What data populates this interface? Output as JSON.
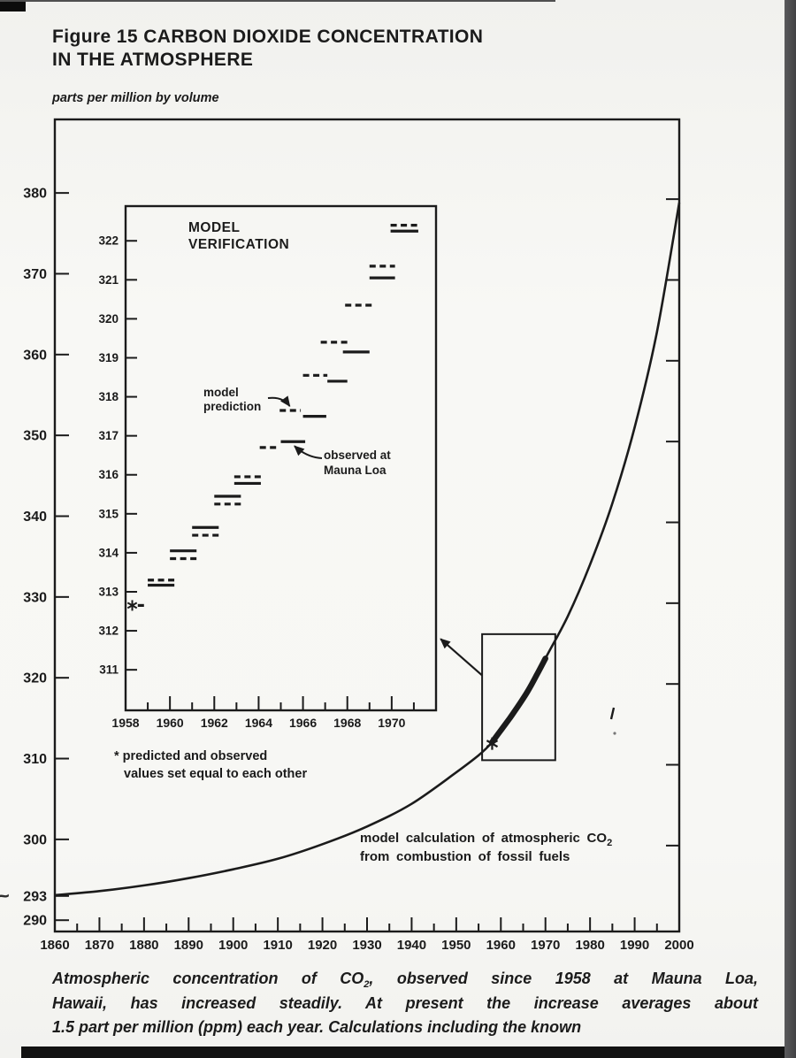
{
  "page": {
    "title_line1": "Figure 15 CARBON DIOXIDE CONCENTRATION",
    "title_line2": "IN THE ATMOSPHERE",
    "unit_label": "parts per million by volume",
    "stray_mark": "~",
    "caption": {
      "line1_pre": "Atmospheric concentration of CO",
      "line1_sub": "2",
      "line1_post": ", observed since 1958 at Mauna Loa,",
      "line2": "Hawaii, has increased steadily. At present the increase averages about",
      "line3": "1.5 part per million (ppm) each year. Calculations including the known"
    }
  },
  "chart_data": [
    {
      "id": "main",
      "type": "line",
      "title": "",
      "xlabel": "year",
      "ylabel": "parts per million by volume",
      "xlim": [
        1860,
        2000
      ],
      "ylim": [
        288.6,
        389.1
      ],
      "grid": false,
      "x_major_ticks": [
        1860,
        1870,
        1880,
        1890,
        1900,
        1910,
        1920,
        1930,
        1940,
        1950,
        1960,
        1970,
        1980,
        1990,
        2000
      ],
      "x_minor_ticks": [
        1865,
        1875,
        1885,
        1895,
        1905,
        1915,
        1925,
        1935,
        1945,
        1955,
        1965,
        1975,
        1985,
        1995
      ],
      "y_ticks": [
        380,
        370,
        360,
        350,
        340,
        330,
        320,
        310,
        300,
        293,
        290
      ],
      "y_ticks_right": [
        380,
        370,
        360,
        350,
        340,
        330,
        320,
        310,
        300
      ],
      "series": [
        {
          "name": "model calculation of atmospheric CO2 from combustion of fossil fuels",
          "style": "line",
          "x": [
            1860,
            1870,
            1880,
            1890,
            1900,
            1910,
            1920,
            1930,
            1940,
            1950,
            1955,
            1958,
            1962,
            1966,
            1970,
            1975,
            1980,
            1985,
            1990,
            1995,
            2000
          ],
          "y": [
            293.1,
            293.6,
            294.3,
            295.2,
            296.3,
            297.6,
            299.4,
            301.6,
            304.4,
            308.3,
            310.4,
            312.0,
            314.8,
            318.0,
            322.4,
            327.6,
            334.0,
            341.6,
            351.0,
            362.8,
            378.8
          ]
        },
        {
          "name": "observed at Mauna Loa (thick overlay 1958-1970)",
          "style": "thick",
          "x": [
            1958,
            1960,
            1962,
            1964,
            1966,
            1968,
            1970
          ],
          "y": [
            312.0,
            313.5,
            315.0,
            316.6,
            318.3,
            320.3,
            322.4
          ]
        }
      ],
      "annotations": {
        "label_line1_pre": "model calculation of atmospheric CO",
        "label_line1_sub": "2",
        "label_line2": "from combustion of fossil fuels",
        "star": {
          "x": 1958.05,
          "v": 311.85
        },
        "zoom_rect": {
          "x1": 1955.8,
          "x2": 1972.2,
          "v1": 309.8,
          "v2": 325.4
        },
        "inset_pointer_arrow": {
          "x1": 1955.8,
          "v1": 320.3,
          "x2": 1946.5,
          "v2": 324.8
        }
      }
    },
    {
      "id": "inset",
      "type": "line",
      "title": "MODEL VERIFICATION",
      "xlim": [
        1958,
        1972.0
      ],
      "ylim": [
        309.96,
        322.89
      ],
      "grid": false,
      "x_major_ticks": [
        1958,
        1960,
        1962,
        1964,
        1966,
        1968,
        1970
      ],
      "x_minor_ticks": [
        1959,
        1961,
        1963,
        1965,
        1967,
        1969,
        1971
      ],
      "y_ticks": [
        311,
        312,
        313,
        314,
        315,
        316,
        317,
        318,
        319,
        320,
        321,
        322
      ],
      "legend": {
        "model_prediction": "model prediction",
        "observed_line1": "observed at",
        "observed_line2": "Mauna Loa",
        "star_note_line1": "* predicted and observed",
        "star_note_line2": "values set equal to each other"
      },
      "segments": [
        {
          "style": "solid",
          "x1": 1969.95,
          "x2": 1971.2,
          "v": 322.25
        },
        {
          "style": "dashed",
          "x1": 1969.95,
          "x2": 1971.2,
          "v": 322.4
        },
        {
          "style": "dashed",
          "x1": 1969.0,
          "x2": 1970.15,
          "v": 321.35
        },
        {
          "style": "solid",
          "x1": 1969.0,
          "x2": 1970.15,
          "v": 321.05
        },
        {
          "style": "dashed",
          "x1": 1967.9,
          "x2": 1969.1,
          "v": 320.35
        },
        {
          "style": "dashed",
          "x1": 1966.8,
          "x2": 1968.0,
          "v": 319.4
        },
        {
          "style": "solid",
          "x1": 1967.8,
          "x2": 1969.0,
          "v": 319.15
        },
        {
          "style": "dashed",
          "x1": 1966.0,
          "x2": 1967.1,
          "v": 318.55
        },
        {
          "style": "solid",
          "x1": 1967.1,
          "x2": 1968.0,
          "v": 318.4
        },
        {
          "style": "dashed",
          "x1": 1964.95,
          "x2": 1965.9,
          "v": 317.65
        },
        {
          "style": "solid",
          "x1": 1966.0,
          "x2": 1967.05,
          "v": 317.5
        },
        {
          "style": "solid",
          "x1": 1965.0,
          "x2": 1966.1,
          "v": 316.85
        },
        {
          "style": "dashed",
          "x1": 1964.05,
          "x2": 1964.95,
          "v": 316.7
        },
        {
          "style": "dashed",
          "x1": 1962.9,
          "x2": 1964.1,
          "v": 315.95
        },
        {
          "style": "solid",
          "x1": 1962.9,
          "x2": 1964.1,
          "v": 315.78
        },
        {
          "style": "solid",
          "x1": 1962.0,
          "x2": 1963.2,
          "v": 315.45
        },
        {
          "style": "dashed",
          "x1": 1962.0,
          "x2": 1963.2,
          "v": 315.25
        },
        {
          "style": "solid",
          "x1": 1961.0,
          "x2": 1962.2,
          "v": 314.65
        },
        {
          "style": "dashed",
          "x1": 1961.0,
          "x2": 1962.2,
          "v": 314.45
        },
        {
          "style": "solid",
          "x1": 1960.0,
          "x2": 1961.2,
          "v": 314.05
        },
        {
          "style": "dashed",
          "x1": 1960.0,
          "x2": 1961.2,
          "v": 313.85
        },
        {
          "style": "dashed",
          "x1": 1959.0,
          "x2": 1960.2,
          "v": 313.3
        },
        {
          "style": "solid",
          "x1": 1959.0,
          "x2": 1960.2,
          "v": 313.17
        },
        {
          "style": "dashed",
          "x1": 1958.55,
          "x2": 1958.95,
          "v": 312.65
        }
      ],
      "star": {
        "x": 1958.3,
        "v": 312.65
      },
      "arrow_targets": {
        "model_prediction": {
          "x": 1965.4,
          "v": 317.65
        },
        "observed": {
          "x": 1965.5,
          "v": 316.85
        }
      },
      "ink_color": "#1b1b1b"
    }
  ]
}
